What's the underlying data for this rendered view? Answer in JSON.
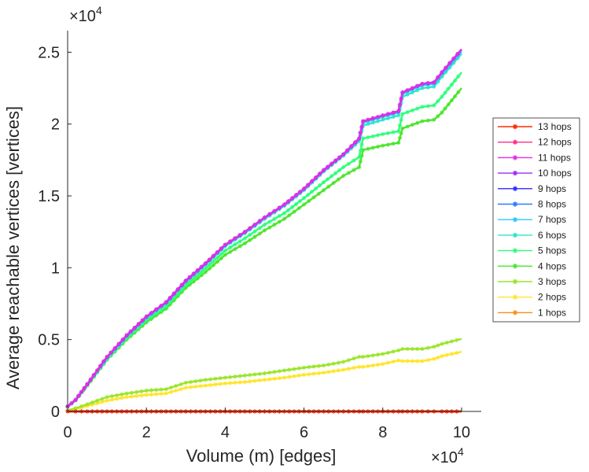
{
  "chart_data": {
    "type": "line",
    "title": "",
    "xlabel": "Volume (m) [edges]",
    "ylabel": "Average reachable vertices [vertices]",
    "x_exponent_label": "×10",
    "x_exponent_power": "4",
    "y_exponent_label": "×10",
    "y_exponent_power": "4",
    "xlim": [
      0,
      105000
    ],
    "ylim": [
      0,
      26500
    ],
    "xticks": [
      0,
      20000,
      40000,
      60000,
      80000,
      100000
    ],
    "xtick_labels": [
      "0",
      "2",
      "4",
      "6",
      "8",
      "10"
    ],
    "yticks": [
      0,
      5000,
      10000,
      15000,
      20000,
      25000
    ],
    "ytick_labels": [
      "0",
      "0.5",
      "1",
      "1.5",
      "2",
      "2.5"
    ],
    "grid": false,
    "legend_position": "right",
    "x": [
      0,
      2000,
      5000,
      10000,
      15000,
      20000,
      25000,
      30000,
      35000,
      40000,
      45000,
      50000,
      55000,
      60000,
      65000,
      70000,
      74000,
      75000,
      80000,
      84000,
      85000,
      90000,
      93000,
      95000,
      100000
    ],
    "series": [
      {
        "name": "13 hops",
        "color": "#ff2b00",
        "values": [
          0,
          0,
          0,
          0,
          0,
          0,
          0,
          0,
          0,
          0,
          0,
          0,
          0,
          0,
          0,
          0,
          0,
          0,
          0,
          0,
          0,
          0,
          0,
          0,
          0
        ]
      },
      {
        "name": "12 hops",
        "color": "#ff2b8a",
        "values": [
          0,
          0,
          0,
          0,
          0,
          0,
          0,
          0,
          0,
          0,
          0,
          0,
          0,
          0,
          0,
          0,
          0,
          0,
          0,
          0,
          0,
          0,
          0,
          0,
          0
        ]
      },
      {
        "name": "11 hops",
        "color": "#e52be5",
        "values": [
          350,
          800,
          1900,
          3800,
          5300,
          6600,
          7600,
          9100,
          10300,
          11600,
          12500,
          13500,
          14400,
          15500,
          16800,
          17900,
          19000,
          20200,
          20600,
          20900,
          22200,
          22800,
          22900,
          23600,
          25200
        ]
      },
      {
        "name": "10 hops",
        "color": "#9a2bff",
        "values": [
          350,
          800,
          1900,
          3800,
          5300,
          6600,
          7600,
          9100,
          10300,
          11600,
          12500,
          13500,
          14400,
          15500,
          16800,
          17900,
          19000,
          20200,
          20600,
          20900,
          22200,
          22800,
          22900,
          23600,
          25200
        ]
      },
      {
        "name": "9 hops",
        "color": "#2b2bff",
        "values": [
          350,
          800,
          1900,
          3800,
          5300,
          6600,
          7600,
          9100,
          10300,
          11600,
          12500,
          13500,
          14400,
          15500,
          16800,
          17900,
          19000,
          20200,
          20600,
          20900,
          22200,
          22800,
          22900,
          23600,
          25200
        ]
      },
      {
        "name": "8 hops",
        "color": "#2b7aff",
        "values": [
          350,
          800,
          1900,
          3800,
          5300,
          6600,
          7600,
          9100,
          10300,
          11600,
          12500,
          13500,
          14400,
          15500,
          16800,
          17900,
          19000,
          20200,
          20600,
          20900,
          22200,
          22800,
          22900,
          23600,
          25200
        ]
      },
      {
        "name": "7 hops",
        "color": "#2bc8ff",
        "values": [
          350,
          800,
          1900,
          3750,
          5250,
          6550,
          7550,
          9050,
          10250,
          11550,
          12450,
          13450,
          14350,
          15450,
          16750,
          17850,
          18950,
          20100,
          20500,
          20800,
          22100,
          22700,
          22800,
          23500,
          25050
        ]
      },
      {
        "name": "6 hops",
        "color": "#2be5c8",
        "values": [
          350,
          800,
          1900,
          3700,
          5200,
          6500,
          7500,
          9000,
          10200,
          11500,
          12400,
          13400,
          14300,
          15400,
          16700,
          17800,
          18800,
          19900,
          20300,
          20600,
          21900,
          22500,
          22600,
          23300,
          24900
        ]
      },
      {
        "name": "5 hops",
        "color": "#2bff7a",
        "values": [
          350,
          780,
          1850,
          3650,
          5100,
          6350,
          7300,
          8800,
          9950,
          11200,
          12050,
          13000,
          13800,
          14850,
          15950,
          17000,
          17700,
          19000,
          19300,
          19500,
          20700,
          21200,
          21300,
          21900,
          23600
        ]
      },
      {
        "name": "4 hops",
        "color": "#4ae52b",
        "values": [
          330,
          760,
          1800,
          3600,
          5000,
          6200,
          7150,
          8600,
          9700,
          10900,
          11700,
          12600,
          13400,
          14400,
          15400,
          16400,
          17000,
          18200,
          18500,
          18700,
          19700,
          20200,
          20300,
          20800,
          22500
        ]
      },
      {
        "name": "3 hops",
        "color": "#9ae52b",
        "values": [
          80,
          220,
          500,
          1000,
          1250,
          1450,
          1550,
          2000,
          2200,
          2350,
          2500,
          2650,
          2850,
          3050,
          3200,
          3450,
          3800,
          3800,
          4000,
          4250,
          4350,
          4350,
          4500,
          4700,
          5050
        ]
      },
      {
        "name": "2 hops",
        "color": "#ffe52b",
        "values": [
          40,
          150,
          380,
          750,
          1000,
          1150,
          1250,
          1650,
          1800,
          1950,
          2050,
          2200,
          2350,
          2550,
          2700,
          2900,
          3100,
          3100,
          3300,
          3550,
          3500,
          3500,
          3650,
          3850,
          4150
        ]
      },
      {
        "name": "1 hops",
        "color": "#ff8c1a",
        "values": [
          0,
          0,
          0,
          0,
          0,
          0,
          0,
          0,
          0,
          0,
          0,
          0,
          0,
          0,
          0,
          0,
          0,
          0,
          0,
          0,
          0,
          0,
          0,
          0,
          0
        ]
      }
    ]
  }
}
